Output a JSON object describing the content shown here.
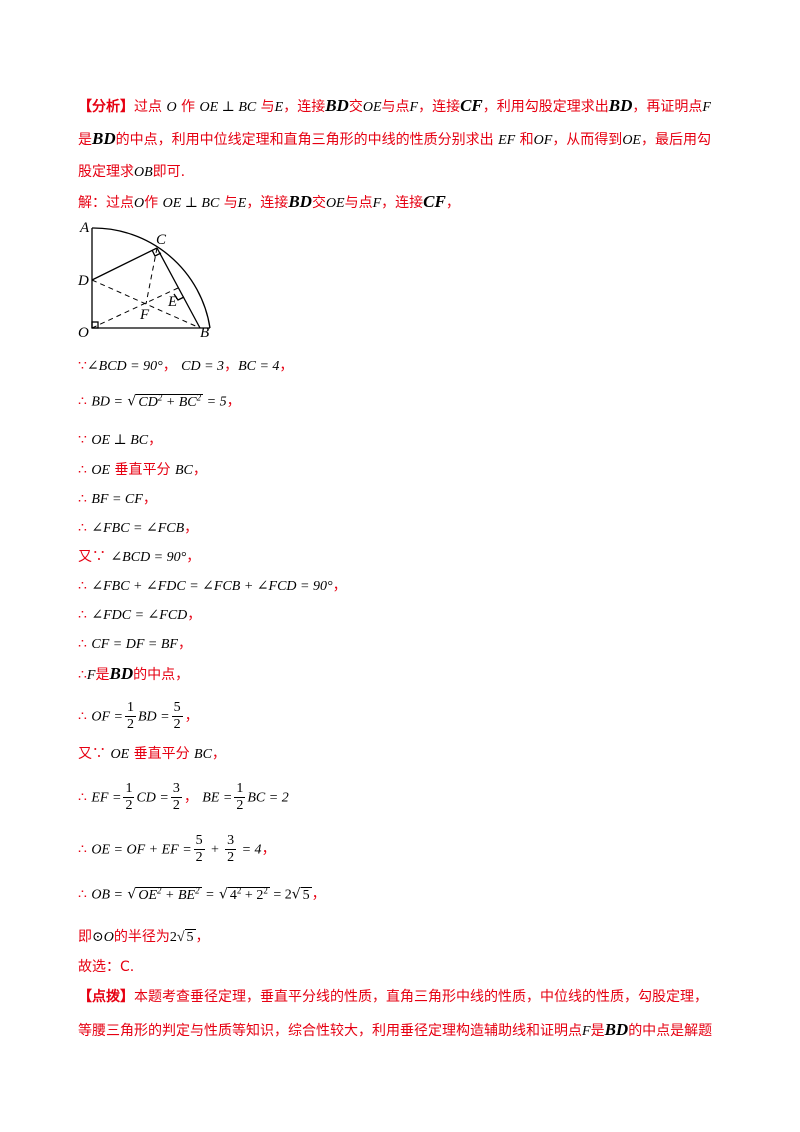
{
  "analysis": {
    "tag": "【分析】",
    "line1": [
      "过点",
      "O",
      "作",
      "OE ⊥ BC",
      "与",
      "E",
      "，连接",
      "BD",
      "交",
      "OE",
      "与点",
      "F",
      "，连接",
      "CF",
      "，利用勾股定理求出",
      "BD",
      "，再证明点",
      "F"
    ],
    "line2": [
      "是",
      "BD",
      "的中点，利用中位线定理和直角三角形的中线的性质分别求出",
      "EF",
      "和",
      "OF",
      "，从而得到",
      "OE",
      "，最后用勾"
    ],
    "line3": [
      "股定理求",
      "OB",
      "即可."
    ]
  },
  "solution_intro": [
    "解：过点",
    "O",
    "作",
    "OE ⊥ BC",
    "与",
    "E",
    "，连接",
    "BD",
    "交",
    "OE",
    "与点",
    "F",
    "，连接",
    "CF",
    "，"
  ],
  "figure": {
    "points": [
      "A",
      "C",
      "D",
      "E",
      "F",
      "O",
      "B"
    ]
  },
  "steps": {
    "s1": [
      "∵",
      "∠BCD = 90°",
      "，",
      "CD = 3",
      "，",
      "BC = 4",
      "，"
    ],
    "s2": [
      "∴",
      "BD =",
      "CD",
      "2",
      " + BC",
      "2",
      " = 5",
      "，"
    ],
    "s3": [
      "∵",
      "OE ⊥ BC",
      "，"
    ],
    "s4": [
      "∴",
      "OE",
      "垂直平分",
      "BC",
      "，"
    ],
    "s5": [
      "∴",
      "BF = CF",
      "，"
    ],
    "s6": [
      "∴",
      "∠FBC = ∠FCB",
      "，"
    ],
    "s7": [
      "又∵",
      "∠BCD = 90°",
      "，"
    ],
    "s8": [
      "∴",
      "∠FBC + ∠FDC = ∠FCB + ∠FCD = 90°",
      "，"
    ],
    "s9": [
      "∴",
      "∠FDC = ∠FCD",
      "，"
    ],
    "s10": [
      "∴",
      "CF = DF = BF",
      "，"
    ],
    "s11": [
      "∴",
      "F",
      "是",
      "BD",
      "的中点，"
    ],
    "s12": [
      "∴",
      "OF =",
      "1",
      "2",
      "BD =",
      "5",
      "2",
      "，"
    ],
    "s13": [
      "又∵",
      "OE",
      "垂直平分",
      "BC",
      "，"
    ],
    "s14": [
      "∴",
      "EF =",
      "1",
      "2",
      "CD =",
      "3",
      "2",
      "，",
      "BE =",
      "1",
      "2",
      "BC = 2"
    ],
    "s15": [
      "∴",
      "OE = OF + EF =",
      "5",
      "2",
      " + ",
      "3",
      "2",
      " = 4",
      "，"
    ],
    "s16": [
      "∴",
      "OB =",
      "OE",
      "2",
      " + BE",
      "2",
      " =",
      "4",
      "2",
      " + 2",
      "2",
      " = 2",
      "5",
      "，"
    ],
    "s17": [
      "即",
      "⊙O",
      "的半径为",
      "2",
      "5",
      "，"
    ],
    "s18": [
      "故选：",
      "C",
      "."
    ]
  },
  "comment": {
    "tag": "【点拨】",
    "line1": "本题考查垂径定理，垂直平分线的性质，直角三角形中线的性质，中位线的性质，勾股定理，",
    "line2": [
      "等腰三角形的判定与性质等知识，综合性较大，利用垂径定理构造辅助线和证明点",
      "F",
      "是",
      "BD",
      "的中点是解题"
    ]
  }
}
